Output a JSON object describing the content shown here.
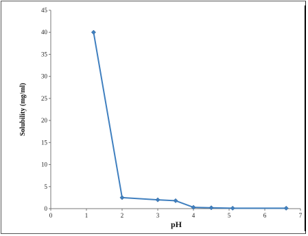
{
  "chart_data": {
    "type": "line",
    "title": "",
    "xlabel": "pH",
    "ylabel": "Solubility (mg/ml)",
    "xlim": [
      0,
      7
    ],
    "ylim": [
      0,
      45
    ],
    "x_ticks": [
      "0",
      "1",
      "2",
      "3",
      "4",
      "5",
      "6",
      "7"
    ],
    "y_ticks": [
      "0",
      "5",
      "10",
      "15",
      "20",
      "25",
      "30",
      "35",
      "40",
      "45"
    ],
    "grid": false,
    "legend": "none",
    "series": [
      {
        "color": "#3f7fbf",
        "marker": "diamond",
        "points": [
          {
            "x": 1.2,
            "y": 40
          },
          {
            "x": 2.0,
            "y": 2.5
          },
          {
            "x": 3.0,
            "y": 2.0
          },
          {
            "x": 3.5,
            "y": 1.8
          },
          {
            "x": 4.0,
            "y": 0.3
          },
          {
            "x": 4.5,
            "y": 0.2
          },
          {
            "x": 5.1,
            "y": 0.1
          },
          {
            "x": 6.6,
            "y": 0.1
          }
        ]
      }
    ]
  }
}
